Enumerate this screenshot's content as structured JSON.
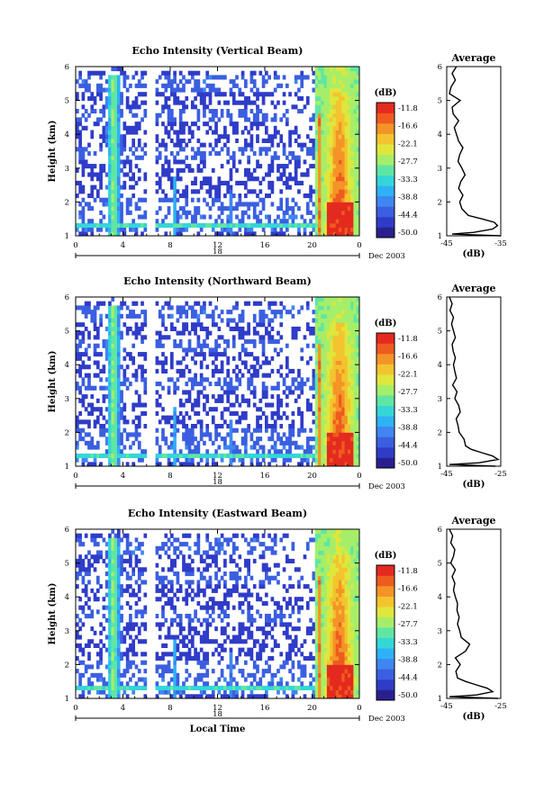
{
  "colorbar": {
    "unit_label": "(dB)",
    "tick_labels": [
      "-11.8",
      "-16.6",
      "-22.1",
      "-27.7",
      "-33.3",
      "-38.8",
      "-44.4",
      "-50.0"
    ],
    "palette": [
      "#2a1f8f",
      "#2f3cc8",
      "#3b5fe0",
      "#3f86f2",
      "#2fb2f5",
      "#35d6d8",
      "#5fe6a3",
      "#a6ee6a",
      "#dfe73c",
      "#f3c430",
      "#f49426",
      "#ee5b1f",
      "#e42a1f"
    ]
  },
  "shared": {
    "date_label": "Dec 2003",
    "day_label": "18",
    "x_axis_label": "Local Time",
    "main_y_label": "Height (km)",
    "avg_title": "Average",
    "avg_x_label": "(dB)"
  },
  "chart_data": [
    {
      "type": "heatmap",
      "title": "Echo Intensity (Vertical Beam)",
      "ylabel": "Height (km)",
      "x_ticks": [
        "0",
        "4",
        "8",
        "12",
        "16",
        "20",
        "0"
      ],
      "y_ticks": [
        "1",
        "2",
        "3",
        "4",
        "5",
        "6"
      ],
      "xlim": [
        0,
        24
      ],
      "ylim": [
        1,
        6
      ],
      "zlim": [
        -50.0,
        -11.8
      ],
      "avg_x_ticks": [
        "-45",
        "-35"
      ],
      "avg_xlim": [
        -45,
        -35
      ],
      "average_profile": {
        "height": [
          1.0,
          1.05,
          1.1,
          1.2,
          1.3,
          1.4,
          1.5,
          1.6,
          1.8,
          2.0,
          2.2,
          2.4,
          2.6,
          2.8,
          3.0,
          3.2,
          3.4,
          3.6,
          3.8,
          4.0,
          4.2,
          4.4,
          4.6,
          4.8,
          5.0,
          5.2,
          5.4,
          5.6,
          5.8,
          6.0
        ],
        "db": [
          -35.0,
          -44.0,
          -40.0,
          -36.5,
          -35.6,
          -36.2,
          -38.5,
          -41.0,
          -42.2,
          -42.6,
          -42.0,
          -42.8,
          -42.4,
          -41.6,
          -42.2,
          -42.9,
          -42.6,
          -42.0,
          -42.8,
          -43.2,
          -43.6,
          -42.8,
          -43.8,
          -44.0,
          -42.5,
          -44.5,
          -44.2,
          -43.4,
          -44.0,
          -43.2
        ]
      }
    },
    {
      "type": "heatmap",
      "title": "Echo Intensity (Northward Beam)",
      "ylabel": "Height (km)",
      "x_ticks": [
        "0",
        "4",
        "8",
        "12",
        "16",
        "20",
        "0"
      ],
      "y_ticks": [
        "1",
        "2",
        "3",
        "4",
        "5",
        "6"
      ],
      "xlim": [
        0,
        24
      ],
      "ylim": [
        1,
        6
      ],
      "zlim": [
        -50.0,
        -11.8
      ],
      "avg_x_ticks": [
        "-45",
        "-25"
      ],
      "avg_xlim": [
        -45,
        -25
      ],
      "average_profile": {
        "height": [
          1.0,
          1.05,
          1.1,
          1.2,
          1.3,
          1.4,
          1.5,
          1.6,
          1.8,
          2.0,
          2.2,
          2.4,
          2.6,
          2.8,
          3.0,
          3.2,
          3.4,
          3.6,
          3.8,
          4.0,
          4.2,
          4.4,
          4.6,
          4.8,
          5.0,
          5.2,
          5.4,
          5.6,
          5.8,
          6.0
        ],
        "db": [
          -27.0,
          -44.0,
          -33.0,
          -26.0,
          -28.0,
          -32.0,
          -36.0,
          -38.0,
          -38.6,
          -40.4,
          -40.8,
          -41.5,
          -40.0,
          -40.6,
          -42.0,
          -41.2,
          -42.8,
          -41.4,
          -42.0,
          -42.5,
          -41.8,
          -42.6,
          -43.0,
          -41.8,
          -42.5,
          -43.2,
          -42.5,
          -43.8,
          -43.0,
          -44.0
        ]
      }
    },
    {
      "type": "heatmap",
      "title": "Echo Intensity (Eastward Beam)",
      "ylabel": "Height (km)",
      "xlabel": "Local Time",
      "x_ticks": [
        "0",
        "4",
        "8",
        "12",
        "16",
        "20",
        "0"
      ],
      "y_ticks": [
        "1",
        "2",
        "3",
        "4",
        "5",
        "6"
      ],
      "xlim": [
        0,
        24
      ],
      "ylim": [
        1,
        6
      ],
      "zlim": [
        -50.0,
        -11.8
      ],
      "avg_x_ticks": [
        "-45",
        "-25"
      ],
      "avg_xlim": [
        -45,
        -25
      ],
      "average_profile": {
        "height": [
          1.0,
          1.05,
          1.1,
          1.2,
          1.3,
          1.4,
          1.5,
          1.6,
          1.8,
          2.0,
          2.2,
          2.4,
          2.6,
          2.8,
          3.0,
          3.2,
          3.4,
          3.6,
          3.8,
          4.0,
          4.2,
          4.4,
          4.6,
          4.8,
          5.0,
          5.2,
          5.4,
          5.6,
          5.8,
          6.0
        ],
        "db": [
          -26.0,
          -44.0,
          -34.0,
          -28.0,
          -30.0,
          -34.0,
          -38.0,
          -41.0,
          -41.6,
          -40.0,
          -41.8,
          -38.0,
          -36.5,
          -39.6,
          -40.2,
          -41.0,
          -40.4,
          -41.2,
          -41.0,
          -41.8,
          -42.5,
          -42.0,
          -43.0,
          -41.8,
          -43.5,
          -42.5,
          -42.0,
          -43.5,
          -42.8,
          -44.0
        ]
      }
    }
  ]
}
